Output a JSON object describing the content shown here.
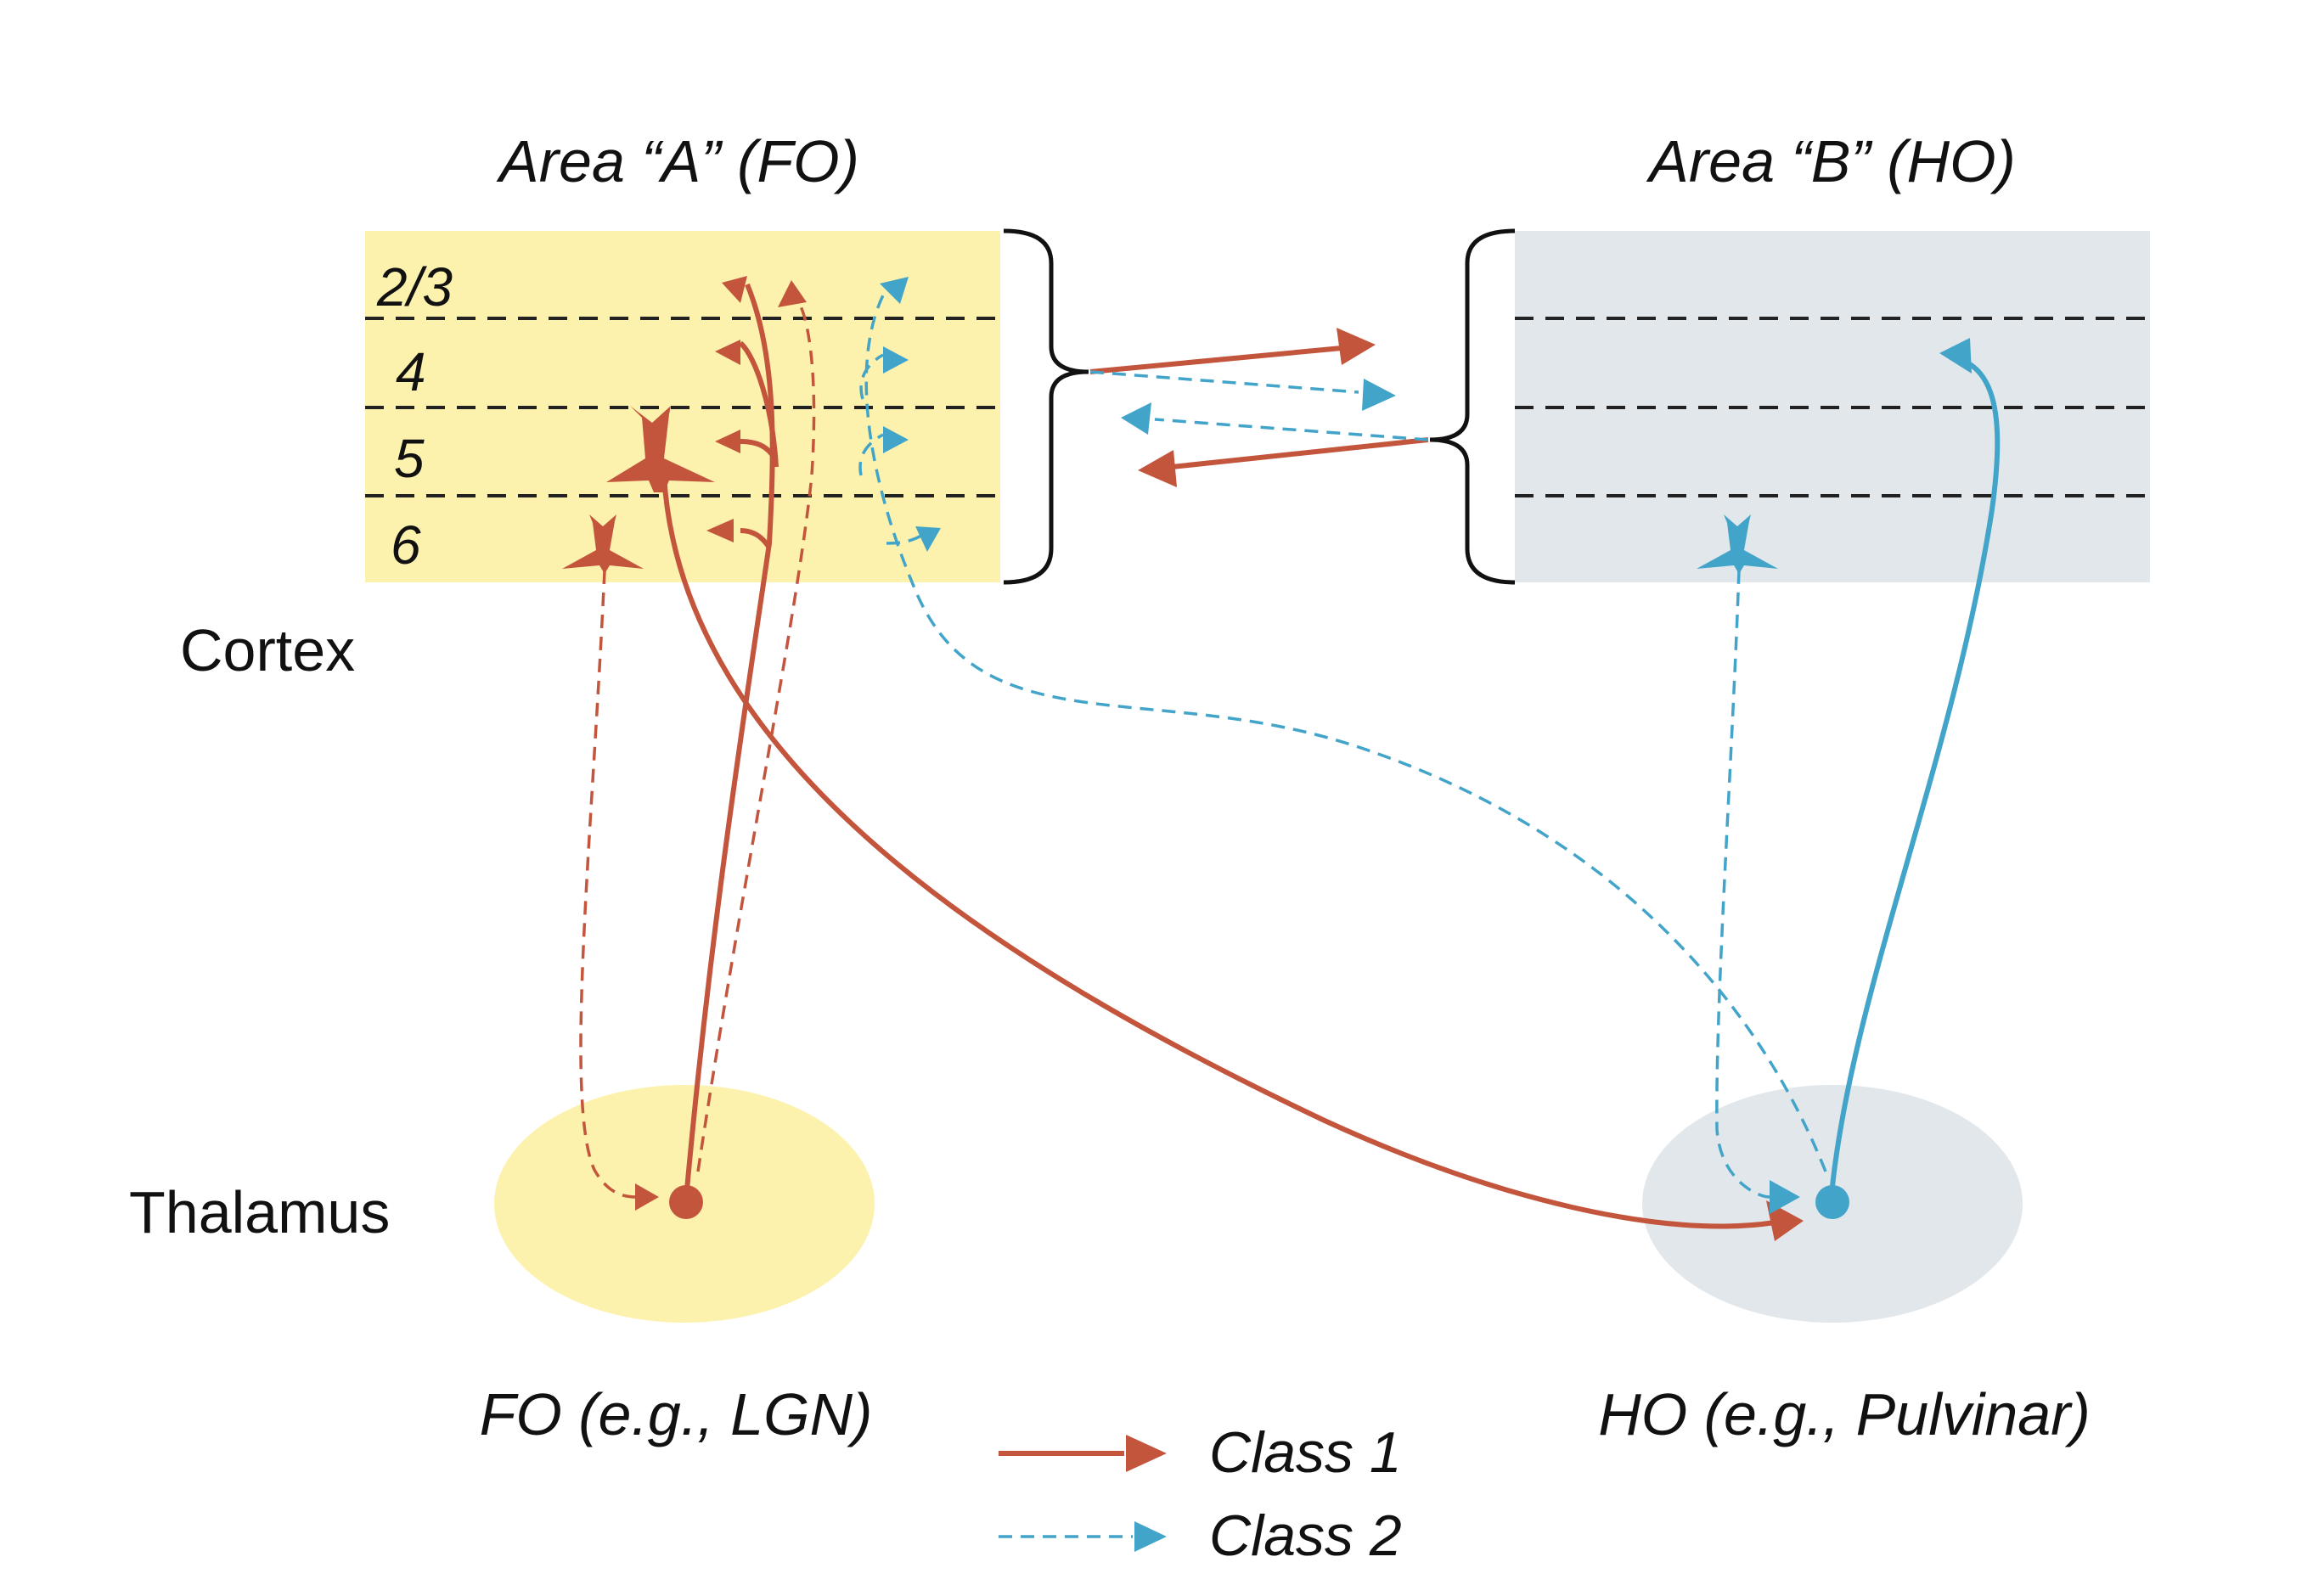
{
  "areas": {
    "a_title": "Area “A” (FO)",
    "b_title": "Area “B” (HO)"
  },
  "layers": [
    "2/3",
    "4",
    "5",
    "6"
  ],
  "regions": {
    "cortex": "Cortex",
    "thalamus": "Thalamus"
  },
  "nuclei": {
    "fo": "FO (e.g., LGN)",
    "ho": "HO (e.g., Pulvinar)"
  },
  "legend": {
    "class1": "Class 1",
    "class2": "Class 2"
  },
  "colors": {
    "fo_fill": "#fdf2ad",
    "ho_fill": "#e1e7ea",
    "class1": "#c4553d",
    "class2": "#43a4c9",
    "text": "#111111"
  }
}
